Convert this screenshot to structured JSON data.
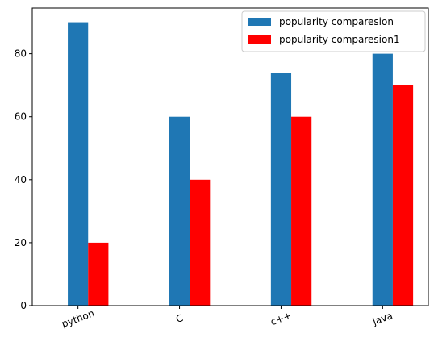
{
  "chart_data": {
    "type": "bar",
    "categories": [
      "python",
      "C",
      "c++",
      "java"
    ],
    "series": [
      {
        "name": "popularity comparesion",
        "values": [
          90,
          60,
          74,
          80
        ],
        "color": "#1f77b4"
      },
      {
        "name": "popularity comparesion1",
        "values": [
          20,
          40,
          60,
          70
        ],
        "color": "#ff0000"
      }
    ],
    "title": "",
    "xlabel": "",
    "ylabel": "",
    "ylim": [
      0,
      94.5
    ],
    "yticks": [
      0,
      20,
      40,
      60,
      80
    ],
    "legend": "top-right",
    "grid": false,
    "xtick_rotation": "rotated"
  }
}
